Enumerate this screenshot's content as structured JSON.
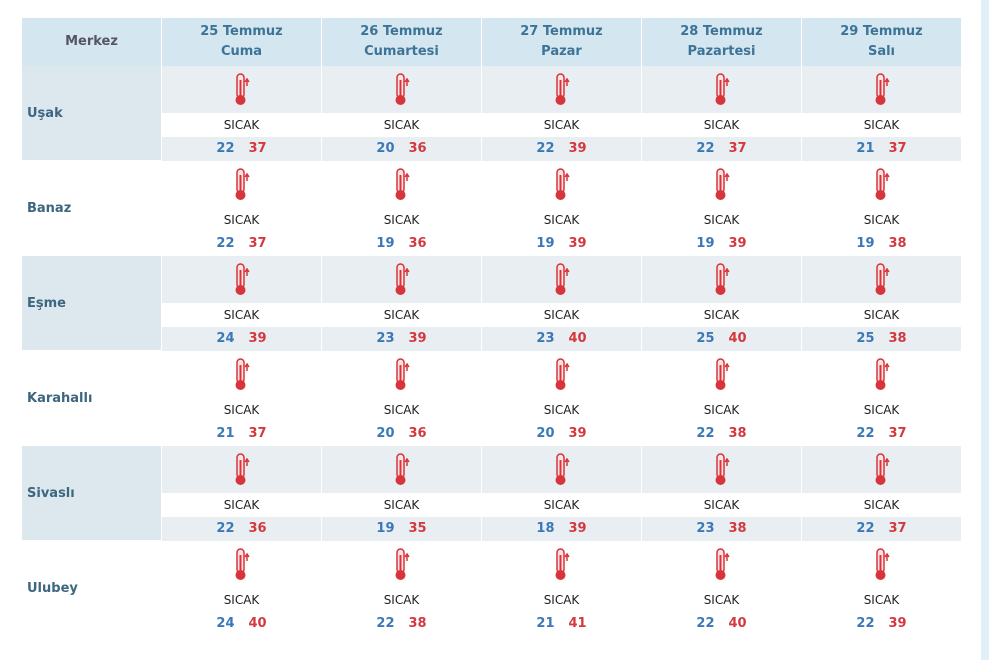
{
  "table": {
    "corner": "Merkez",
    "days": [
      {
        "date": "25 Temmuz",
        "day": "Cuma"
      },
      {
        "date": "26 Temmuz",
        "day": "Cumartesi"
      },
      {
        "date": "27 Temmuz",
        "day": "Pazar"
      },
      {
        "date": "28 Temmuz",
        "day": "Pazartesi"
      },
      {
        "date": "29 Temmuz",
        "day": "Salı"
      }
    ],
    "rows": [
      {
        "name": "Uşak",
        "cells": [
          {
            "condition": "SICAK",
            "min": 22,
            "max": 37
          },
          {
            "condition": "SICAK",
            "min": 20,
            "max": 36
          },
          {
            "condition": "SICAK",
            "min": 22,
            "max": 39
          },
          {
            "condition": "SICAK",
            "min": 22,
            "max": 37
          },
          {
            "condition": "SICAK",
            "min": 21,
            "max": 37
          }
        ]
      },
      {
        "name": "Banaz",
        "cells": [
          {
            "condition": "SICAK",
            "min": 22,
            "max": 37
          },
          {
            "condition": "SICAK",
            "min": 19,
            "max": 36
          },
          {
            "condition": "SICAK",
            "min": 19,
            "max": 39
          },
          {
            "condition": "SICAK",
            "min": 19,
            "max": 39
          },
          {
            "condition": "SICAK",
            "min": 19,
            "max": 38
          }
        ]
      },
      {
        "name": "Eşme",
        "cells": [
          {
            "condition": "SICAK",
            "min": 24,
            "max": 39
          },
          {
            "condition": "SICAK",
            "min": 23,
            "max": 39
          },
          {
            "condition": "SICAK",
            "min": 23,
            "max": 40
          },
          {
            "condition": "SICAK",
            "min": 25,
            "max": 40
          },
          {
            "condition": "SICAK",
            "min": 25,
            "max": 38
          }
        ]
      },
      {
        "name": "Karahallı",
        "cells": [
          {
            "condition": "SICAK",
            "min": 21,
            "max": 37
          },
          {
            "condition": "SICAK",
            "min": 20,
            "max": 36
          },
          {
            "condition": "SICAK",
            "min": 20,
            "max": 39
          },
          {
            "condition": "SICAK",
            "min": 22,
            "max": 38
          },
          {
            "condition": "SICAK",
            "min": 22,
            "max": 37
          }
        ]
      },
      {
        "name": "Sivaslı",
        "cells": [
          {
            "condition": "SICAK",
            "min": 22,
            "max": 36
          },
          {
            "condition": "SICAK",
            "min": 19,
            "max": 35
          },
          {
            "condition": "SICAK",
            "min": 18,
            "max": 39
          },
          {
            "condition": "SICAK",
            "min": 23,
            "max": 38
          },
          {
            "condition": "SICAK",
            "min": 22,
            "max": 37
          }
        ]
      },
      {
        "name": "Ulubey",
        "cells": [
          {
            "condition": "SICAK",
            "min": 24,
            "max": 40
          },
          {
            "condition": "SICAK",
            "min": 22,
            "max": 38
          },
          {
            "condition": "SICAK",
            "min": 21,
            "max": 41
          },
          {
            "condition": "SICAK",
            "min": 22,
            "max": 40
          },
          {
            "condition": "SICAK",
            "min": 22,
            "max": 39
          }
        ]
      }
    ]
  }
}
